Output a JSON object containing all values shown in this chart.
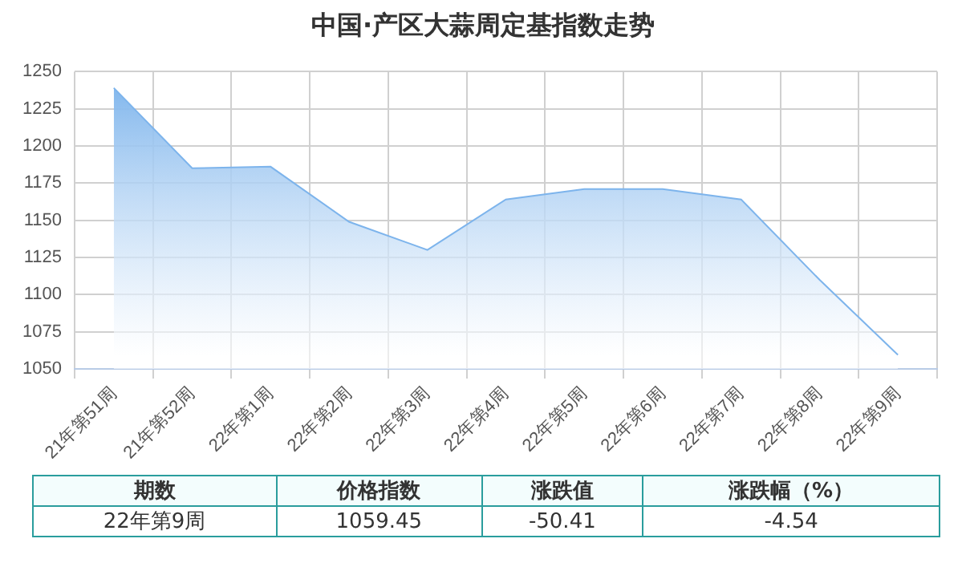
{
  "chart_data": {
    "type": "area",
    "title": "中国·产区大蒜周定基指数走势",
    "categories": [
      "21年第51周",
      "21年第52周",
      "22年第1周",
      "22年第2周",
      "22年第3周",
      "22年第4周",
      "22年第5周",
      "22年第6周",
      "22年第7周",
      "22年第8周",
      "22年第9周"
    ],
    "series": [
      {
        "color": "#7db4ec",
        "values": [
          1239,
          1185,
          1186,
          1149,
          1130,
          1164,
          1171,
          1171,
          1164,
          1110,
          1059.45
        ]
      }
    ],
    "ylim": [
      1050,
      1250
    ],
    "yticks": [
      1050,
      1075,
      1100,
      1125,
      1150,
      1175,
      1200,
      1225,
      1250
    ],
    "grid": true,
    "legend": false,
    "annotations": [
      "期数",
      "价格指数",
      "涨跌值",
      "涨跌幅（%）",
      "22年第9周",
      "1059.45",
      "-50.41",
      "-4.54"
    ]
  }
}
